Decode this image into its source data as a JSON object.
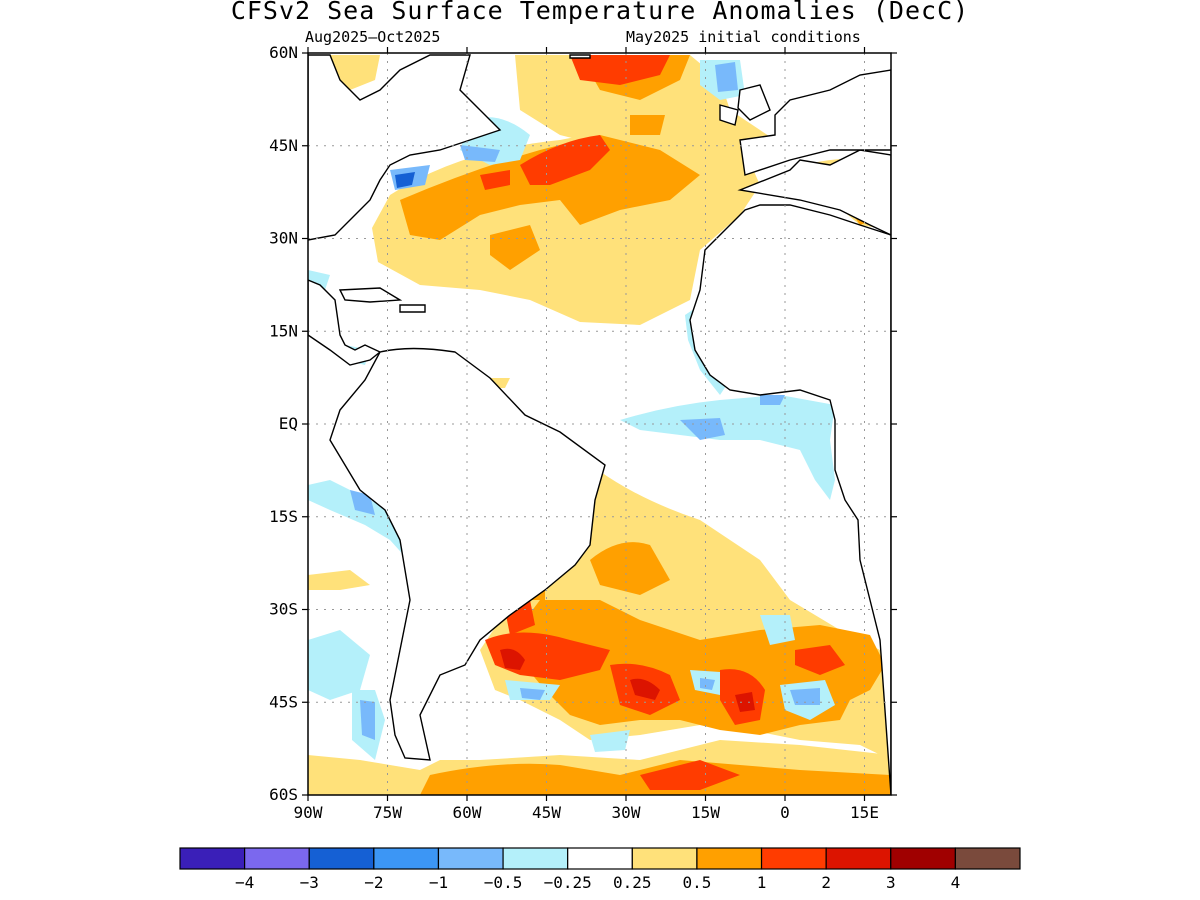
{
  "title": "CFSv2 Sea Surface Temperature Anomalies (DecC)",
  "period": "Aug2025–Oct2025",
  "init": "May2025 initial conditions",
  "map": {
    "lon_range": [
      -90,
      20
    ],
    "lat_range": [
      -60,
      60
    ],
    "lat_ticks": [
      {
        "v": 60,
        "label": "60N"
      },
      {
        "v": 45,
        "label": "45N"
      },
      {
        "v": 30,
        "label": "30N"
      },
      {
        "v": 15,
        "label": "15N"
      },
      {
        "v": 0,
        "label": "EQ"
      },
      {
        "v": -15,
        "label": "15S"
      },
      {
        "v": -30,
        "label": "30S"
      },
      {
        "v": -45,
        "label": "45S"
      },
      {
        "v": -60,
        "label": "60S"
      }
    ],
    "lon_ticks": [
      {
        "v": -90,
        "label": "90W"
      },
      {
        "v": -75,
        "label": "75W"
      },
      {
        "v": -60,
        "label": "60W"
      },
      {
        "v": -45,
        "label": "45W"
      },
      {
        "v": -30,
        "label": "30W"
      },
      {
        "v": -15,
        "label": "15W"
      },
      {
        "v": 0,
        "label": "0"
      },
      {
        "v": 15,
        "label": "15E"
      }
    ],
    "gridlines": true
  },
  "colorbar": {
    "colors": [
      "#3a1fb8",
      "#7b68ee",
      "#1560d4",
      "#3c96f5",
      "#78b9fb",
      "#b4f0fa",
      "#ffffff",
      "#ffe17a",
      "#ffa000",
      "#ff3c00",
      "#dc1400",
      "#a00000",
      "#7a4a3c"
    ],
    "labels": [
      "−4",
      "−3",
      "−2",
      "−1",
      "−0.5",
      "−0.25",
      "0.25",
      "0.5",
      "1",
      "2",
      "3",
      "4"
    ]
  }
}
